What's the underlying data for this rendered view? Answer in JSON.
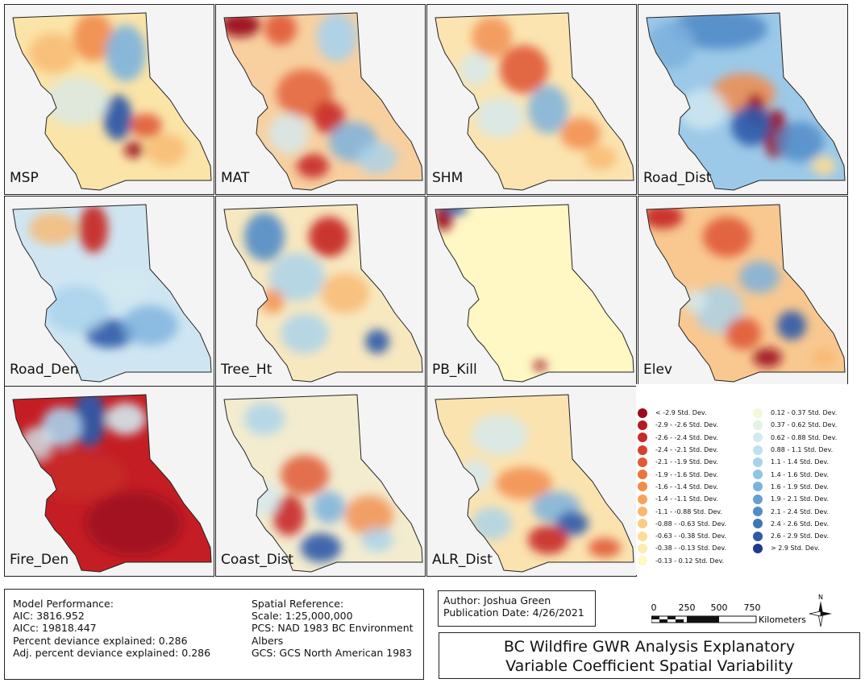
{
  "panels": [
    {
      "label": "MSP",
      "scheme": "msp"
    },
    {
      "label": "MAT",
      "scheme": "mat"
    },
    {
      "label": "SHM",
      "scheme": "shm"
    },
    {
      "label": "Road_Dist",
      "scheme": "road_dist"
    },
    {
      "label": "Road_Den",
      "scheme": "road_den"
    },
    {
      "label": "Tree_Ht",
      "scheme": "tree_ht"
    },
    {
      "label": "PB_Kill",
      "scheme": "pb_kill"
    },
    {
      "label": "Elev",
      "scheme": "elev"
    },
    {
      "label": "Fire_Den",
      "scheme": "fire_den"
    },
    {
      "label": "Coast_Dist",
      "scheme": "coast_dist"
    },
    {
      "label": "ALR_Dist",
      "scheme": "alr_dist"
    }
  ],
  "legend": {
    "left": [
      {
        "label": "< -2.9 Std. Dev.",
        "color": "#9b0a1e"
      },
      {
        "label": "-2.9 - -2.6 Std. Dev.",
        "color": "#b51a23"
      },
      {
        "label": "-2.6 - -2.4 Std. Dev.",
        "color": "#c72a28"
      },
      {
        "label": "-2.4 - -2.1 Std. Dev.",
        "color": "#d6402e"
      },
      {
        "label": "-2.1 - -1.9 Std. Dev.",
        "color": "#e05a36"
      },
      {
        "label": "-1.9 - -1.6 Std. Dev.",
        "color": "#ea7440"
      },
      {
        "label": "-1.6 - -1.4 Std. Dev.",
        "color": "#f18c4d"
      },
      {
        "label": "-1.4 - -1.1 Std. Dev.",
        "color": "#f5a35d"
      },
      {
        "label": "-1.1 - -0.88 Std. Dev.",
        "color": "#f8b86e"
      },
      {
        "label": "-0.88 - -0.63 Std. Dev.",
        "color": "#fbcc82"
      },
      {
        "label": "-0.63 - -0.38 Std. Dev.",
        "color": "#fddc98"
      },
      {
        "label": "-0.38 - -0.13 Std. Dev.",
        "color": "#feebb0"
      },
      {
        "label": "-0.13 - 0.12 Std. Dev.",
        "color": "#fff7c4"
      }
    ],
    "right": [
      {
        "label": "0.12 - 0.37 Std. Dev.",
        "color": "#f3f8d8"
      },
      {
        "label": "0.37 - 0.62 Std. Dev.",
        "color": "#e3f1e6"
      },
      {
        "label": "0.62 - 0.88 Std. Dev.",
        "color": "#d3eaf0"
      },
      {
        "label": "0.88 - 1.1 Std. Dev.",
        "color": "#bfe0f0"
      },
      {
        "label": "1.1 - 1.4 Std. Dev.",
        "color": "#a8d2ec"
      },
      {
        "label": "1.4 - 1.6 Std. Dev.",
        "color": "#92c3e5"
      },
      {
        "label": "1.6 - 1.9 Std. Dev.",
        "color": "#7cb2dd"
      },
      {
        "label": "1.9 - 2.1 Std. Dev.",
        "color": "#669fd3"
      },
      {
        "label": "2.1 - 2.4 Std. Dev.",
        "color": "#528cc8"
      },
      {
        "label": "2.4 - 2.6 Std. Dev.",
        "color": "#3f76ba"
      },
      {
        "label": "2.6 - 2.9 Std. Dev.",
        "color": "#2f5aa8"
      },
      {
        "label": "> 2.9 Std. Dev.",
        "color": "#1e3a8a"
      }
    ]
  },
  "info": {
    "model_header": "Model Performance:",
    "aic": "AIC: 3816.952",
    "aicc": "AICc: 19818.447",
    "pde": "Percent deviance explained: 0.286",
    "adj_pde": "Adj. percent deviance explained: 0.286",
    "sr_header": "Spatial Reference:",
    "scale": "Scale: 1:25,000,000",
    "pcs_1": "PCS: NAD 1983 BC Environment",
    "pcs_2": "Albers",
    "gcs": "GCS: GCS North American 1983"
  },
  "author": {
    "name": "Author: Joshua Green",
    "date": "Publication Date: 4/26/2021"
  },
  "title": {
    "line1": "BC Wildfire GWR Analysis Explanatory",
    "line2": "Variable Coefficient Spatial Variability"
  },
  "scalebar": {
    "ticks": [
      "0",
      "250",
      "500",
      "750"
    ],
    "unit": "Kilometers"
  },
  "north_arrow": {
    "letter": "N",
    "icon": "north-arrow-icon"
  }
}
